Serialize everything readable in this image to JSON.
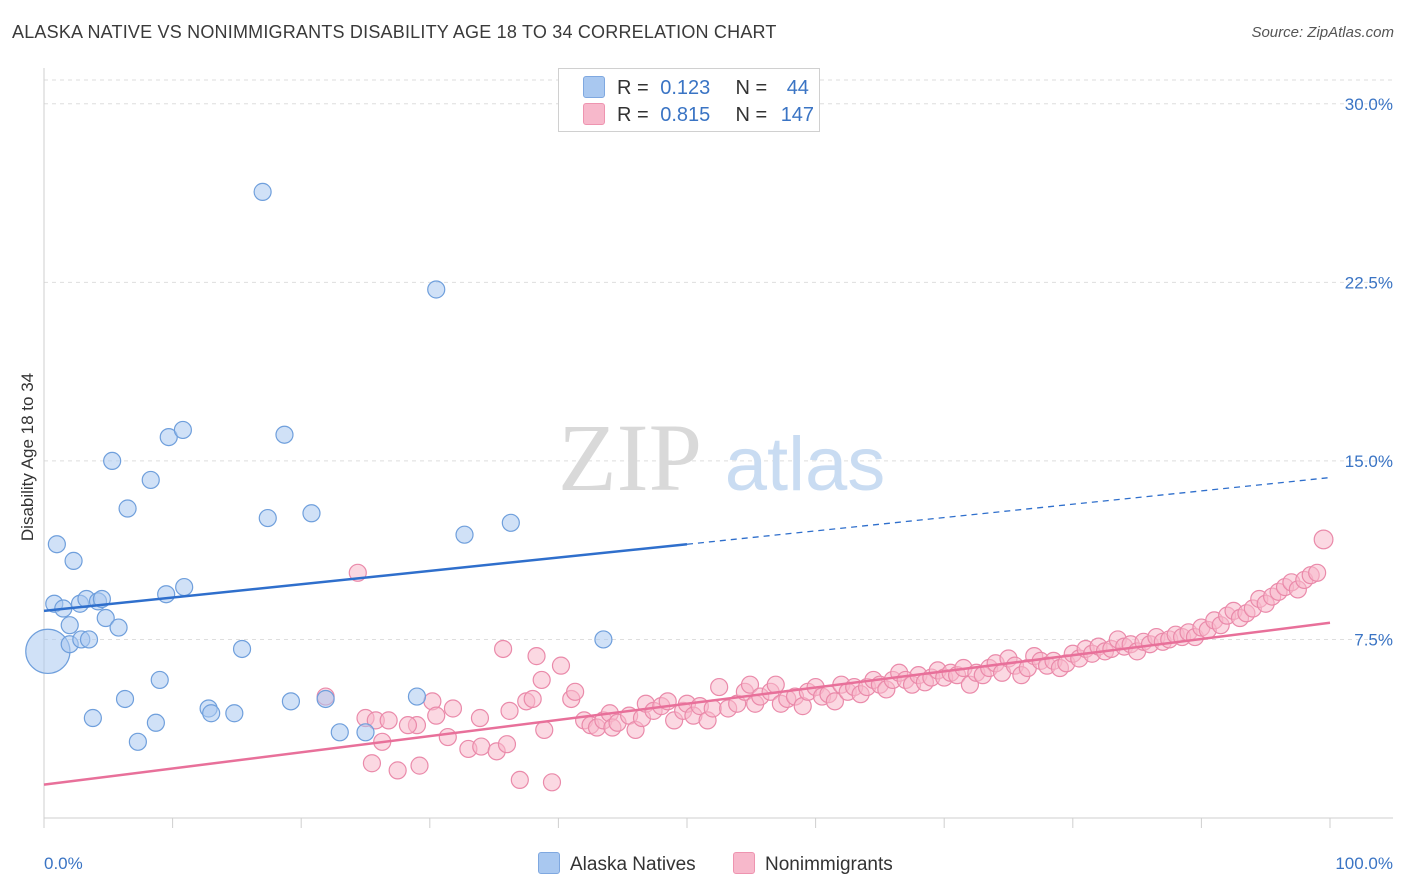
{
  "title": "ALASKA NATIVE VS NONIMMIGRANTS DISABILITY AGE 18 TO 34 CORRELATION CHART",
  "source": "Source: ZipAtlas.com",
  "watermark": {
    "zip": "ZIP",
    "atlas": "atlas"
  },
  "legend": {
    "rows": [
      {
        "r_label": "R =",
        "r_value": "0.123",
        "n_label": "N =",
        "n_value": "44",
        "color": "#a9c8f0",
        "border": "#7fa8e0"
      },
      {
        "r_label": "R =",
        "r_value": "0.815",
        "n_label": "N =",
        "n_value": "147",
        "color": "#f7b8cb",
        "border": "#ee94b0"
      }
    ]
  },
  "bottom_legend": {
    "series1": "Alaska Natives",
    "series2": "Nonimmigrants"
  },
  "colors": {
    "blue_fill": "#a9c8f0",
    "blue_stroke": "#6f9fdc",
    "blue_line": "#2f6fcc",
    "pink_fill": "#f7b8cb",
    "pink_stroke": "#ea8aaa",
    "pink_line": "#e8709a",
    "tick_label": "#3a74c4"
  },
  "chart_data": {
    "type": "scatter",
    "title": "ALASKA NATIVE VS NONIMMIGRANTS DISABILITY AGE 18 TO 34 CORRELATION CHART",
    "xlabel": "",
    "ylabel": "Disability Age 18 to 34",
    "xlim": [
      0,
      100
    ],
    "ylim": [
      0,
      31
    ],
    "x_tick_labels": [
      "0.0%",
      "100.0%"
    ],
    "y_ticks": [
      7.5,
      15.0,
      22.5,
      30.0
    ],
    "y_tick_labels": [
      "7.5%",
      "15.0%",
      "22.5%",
      "30.0%"
    ],
    "grid": "horizontal dashed",
    "legend_position": "top-center",
    "series": [
      {
        "name": "Alaska Natives",
        "R": 0.123,
        "N": 44,
        "trend": {
          "x0": 0,
          "y0": 8.7,
          "x1": 50,
          "y1": 11.5,
          "x_end_dashed": 100,
          "y_end_dashed": 14.3
        },
        "points": [
          [
            0.3,
            7.0,
            2.6
          ],
          [
            0.8,
            9.0,
            1
          ],
          [
            1.0,
            11.5,
            1
          ],
          [
            1.5,
            8.8,
            1
          ],
          [
            2.0,
            7.3,
            1
          ],
          [
            2.0,
            8.1,
            1
          ],
          [
            2.3,
            10.8,
            1
          ],
          [
            2.8,
            9.0,
            1
          ],
          [
            2.9,
            7.5,
            1
          ],
          [
            3.3,
            9.2,
            1
          ],
          [
            3.5,
            7.5,
            1
          ],
          [
            3.8,
            4.2,
            1
          ],
          [
            4.2,
            9.1,
            1
          ],
          [
            4.5,
            9.2,
            1
          ],
          [
            4.8,
            8.4,
            1
          ],
          [
            5.3,
            15.0,
            1
          ],
          [
            5.8,
            8.0,
            1
          ],
          [
            6.3,
            5.0,
            1
          ],
          [
            6.5,
            13.0,
            1
          ],
          [
            7.3,
            3.2,
            1
          ],
          [
            8.3,
            14.2,
            1
          ],
          [
            8.7,
            4.0,
            1
          ],
          [
            9.0,
            5.8,
            1
          ],
          [
            9.5,
            9.4,
            1
          ],
          [
            9.7,
            16.0,
            1
          ],
          [
            10.8,
            16.3,
            1
          ],
          [
            10.9,
            9.7,
            1
          ],
          [
            12.8,
            4.6,
            1
          ],
          [
            13.0,
            4.4,
            1
          ],
          [
            14.8,
            4.4,
            1
          ],
          [
            15.4,
            7.1,
            1
          ],
          [
            17.0,
            26.3,
            1
          ],
          [
            17.4,
            12.6,
            1
          ],
          [
            18.7,
            16.1,
            1
          ],
          [
            19.2,
            4.9,
            1
          ],
          [
            20.8,
            12.8,
            1
          ],
          [
            21.9,
            5.0,
            1
          ],
          [
            23.0,
            3.6,
            1
          ],
          [
            25.0,
            3.6,
            1
          ],
          [
            29.0,
            5.1,
            1
          ],
          [
            30.5,
            22.2,
            1
          ],
          [
            32.7,
            11.9,
            1
          ],
          [
            36.3,
            12.4,
            1
          ],
          [
            43.5,
            7.5,
            1
          ]
        ]
      },
      {
        "name": "Nonimmigrants",
        "R": 0.815,
        "N": 147,
        "trend": {
          "x0": 0,
          "y0": 1.4,
          "x1": 100,
          "y1": 8.2
        },
        "points": [
          [
            21.9,
            5.1,
            1
          ],
          [
            24.4,
            10.3,
            1
          ],
          [
            25.0,
            4.2,
            1
          ],
          [
            25.5,
            2.3,
            1
          ],
          [
            25.8,
            4.1,
            1
          ],
          [
            26.3,
            3.2,
            1
          ],
          [
            26.8,
            4.1,
            1
          ],
          [
            27.5,
            2.0,
            1
          ],
          [
            29.0,
            3.9,
            1
          ],
          [
            29.2,
            2.2,
            1
          ],
          [
            30.2,
            4.9,
            1
          ],
          [
            30.5,
            4.3,
            1
          ],
          [
            31.4,
            3.4,
            1
          ],
          [
            33.0,
            2.9,
            1
          ],
          [
            34.0,
            3.0,
            1
          ],
          [
            35.2,
            2.8,
            1
          ],
          [
            36.0,
            3.1,
            1
          ],
          [
            35.7,
            7.1,
            1
          ],
          [
            36.2,
            4.5,
            1
          ],
          [
            37.0,
            1.6,
            1
          ],
          [
            37.5,
            4.9,
            1
          ],
          [
            38.0,
            5.0,
            1
          ],
          [
            38.3,
            6.8,
            1
          ],
          [
            38.7,
            5.8,
            1
          ],
          [
            38.9,
            3.7,
            1
          ],
          [
            39.5,
            1.5,
            1
          ],
          [
            40.2,
            6.4,
            1
          ],
          [
            41.0,
            5.0,
            1
          ],
          [
            41.3,
            5.3,
            1
          ],
          [
            42.0,
            4.1,
            1
          ],
          [
            42.5,
            3.9,
            1
          ],
          [
            43.0,
            3.8,
            1
          ],
          [
            43.5,
            4.1,
            1
          ],
          [
            44.0,
            4.4,
            1
          ],
          [
            44.2,
            3.8,
            1
          ],
          [
            44.6,
            4.0,
            1
          ],
          [
            45.5,
            4.3,
            1
          ],
          [
            46.0,
            3.7,
            1
          ],
          [
            46.5,
            4.2,
            1
          ],
          [
            46.8,
            4.8,
            1
          ],
          [
            47.4,
            4.5,
            1
          ],
          [
            48.0,
            4.7,
            1
          ],
          [
            48.5,
            4.9,
            1
          ],
          [
            49.0,
            4.1,
            1
          ],
          [
            49.7,
            4.5,
            1
          ],
          [
            50.0,
            4.8,
            1
          ],
          [
            50.5,
            4.3,
            1
          ],
          [
            51.0,
            4.7,
            1
          ],
          [
            51.6,
            4.1,
            1
          ],
          [
            52.0,
            4.6,
            1
          ],
          [
            52.5,
            5.5,
            1
          ],
          [
            53.2,
            4.6,
            1
          ],
          [
            53.9,
            4.8,
            1
          ],
          [
            54.5,
            5.3,
            1
          ],
          [
            54.9,
            5.6,
            1
          ],
          [
            55.3,
            4.8,
            1
          ],
          [
            55.7,
            5.1,
            1
          ],
          [
            56.5,
            5.3,
            1
          ],
          [
            56.9,
            5.6,
            1
          ],
          [
            57.3,
            4.8,
            1
          ],
          [
            57.8,
            5.0,
            1
          ],
          [
            58.4,
            5.1,
            1
          ],
          [
            59.0,
            4.7,
            1
          ],
          [
            59.4,
            5.3,
            1
          ],
          [
            60.0,
            5.5,
            1
          ],
          [
            60.5,
            5.1,
            1
          ],
          [
            61.0,
            5.2,
            1
          ],
          [
            61.5,
            4.9,
            1
          ],
          [
            62.0,
            5.6,
            1
          ],
          [
            62.5,
            5.3,
            1
          ],
          [
            63.0,
            5.5,
            1
          ],
          [
            63.5,
            5.2,
            1
          ],
          [
            64.0,
            5.5,
            1
          ],
          [
            64.5,
            5.8,
            1
          ],
          [
            65.0,
            5.6,
            1
          ],
          [
            65.5,
            5.4,
            1
          ],
          [
            66.0,
            5.8,
            1
          ],
          [
            66.5,
            6.1,
            1
          ],
          [
            67.0,
            5.8,
            1
          ],
          [
            67.5,
            5.6,
            1
          ],
          [
            68.0,
            6.0,
            1
          ],
          [
            68.5,
            5.7,
            1
          ],
          [
            69.0,
            5.9,
            1
          ],
          [
            69.5,
            6.2,
            1
          ],
          [
            70.0,
            5.9,
            1
          ],
          [
            70.5,
            6.1,
            1
          ],
          [
            71.0,
            6.0,
            1
          ],
          [
            71.5,
            6.3,
            1
          ],
          [
            72.0,
            5.6,
            1
          ],
          [
            72.5,
            6.1,
            1
          ],
          [
            73.0,
            6.0,
            1
          ],
          [
            73.5,
            6.3,
            1
          ],
          [
            74.0,
            6.5,
            1
          ],
          [
            74.5,
            6.1,
            1
          ],
          [
            75.0,
            6.7,
            1
          ],
          [
            75.5,
            6.4,
            1
          ],
          [
            76.0,
            6.0,
            1
          ],
          [
            76.5,
            6.3,
            1
          ],
          [
            77.0,
            6.8,
            1
          ],
          [
            77.5,
            6.6,
            1
          ],
          [
            78.0,
            6.4,
            1
          ],
          [
            78.5,
            6.6,
            1
          ],
          [
            79.0,
            6.3,
            1
          ],
          [
            79.5,
            6.5,
            1
          ],
          [
            80.0,
            6.9,
            1
          ],
          [
            80.5,
            6.7,
            1
          ],
          [
            81.0,
            7.1,
            1
          ],
          [
            81.5,
            6.9,
            1
          ],
          [
            82.0,
            7.2,
            1
          ],
          [
            82.5,
            7.0,
            1
          ],
          [
            83.0,
            7.1,
            1
          ],
          [
            83.5,
            7.5,
            1
          ],
          [
            84.0,
            7.2,
            1
          ],
          [
            84.5,
            7.3,
            1
          ],
          [
            85.0,
            7.0,
            1
          ],
          [
            85.5,
            7.4,
            1
          ],
          [
            86.0,
            7.3,
            1
          ],
          [
            86.5,
            7.6,
            1
          ],
          [
            87.0,
            7.4,
            1
          ],
          [
            87.5,
            7.5,
            1
          ],
          [
            88.0,
            7.7,
            1
          ],
          [
            88.5,
            7.6,
            1
          ],
          [
            89.0,
            7.8,
            1
          ],
          [
            89.5,
            7.6,
            1
          ],
          [
            90.0,
            8.0,
            1
          ],
          [
            90.5,
            7.9,
            1
          ],
          [
            91.0,
            8.3,
            1
          ],
          [
            91.5,
            8.1,
            1
          ],
          [
            92.0,
            8.5,
            1
          ],
          [
            92.5,
            8.7,
            1
          ],
          [
            93.0,
            8.4,
            1
          ],
          [
            93.5,
            8.6,
            1
          ],
          [
            94.0,
            8.8,
            1
          ],
          [
            94.5,
            9.2,
            1
          ],
          [
            95.0,
            9.0,
            1
          ],
          [
            95.5,
            9.3,
            1
          ],
          [
            96.0,
            9.5,
            1
          ],
          [
            96.5,
            9.7,
            1
          ],
          [
            97.0,
            9.9,
            1
          ],
          [
            97.5,
            9.6,
            1
          ],
          [
            98.0,
            10.0,
            1
          ],
          [
            98.5,
            10.2,
            1
          ],
          [
            99.0,
            10.3,
            1
          ],
          [
            99.5,
            11.7,
            1.1
          ],
          [
            28.3,
            3.9,
            1
          ],
          [
            31.8,
            4.6,
            1
          ],
          [
            33.9,
            4.2,
            1
          ]
        ]
      }
    ]
  }
}
